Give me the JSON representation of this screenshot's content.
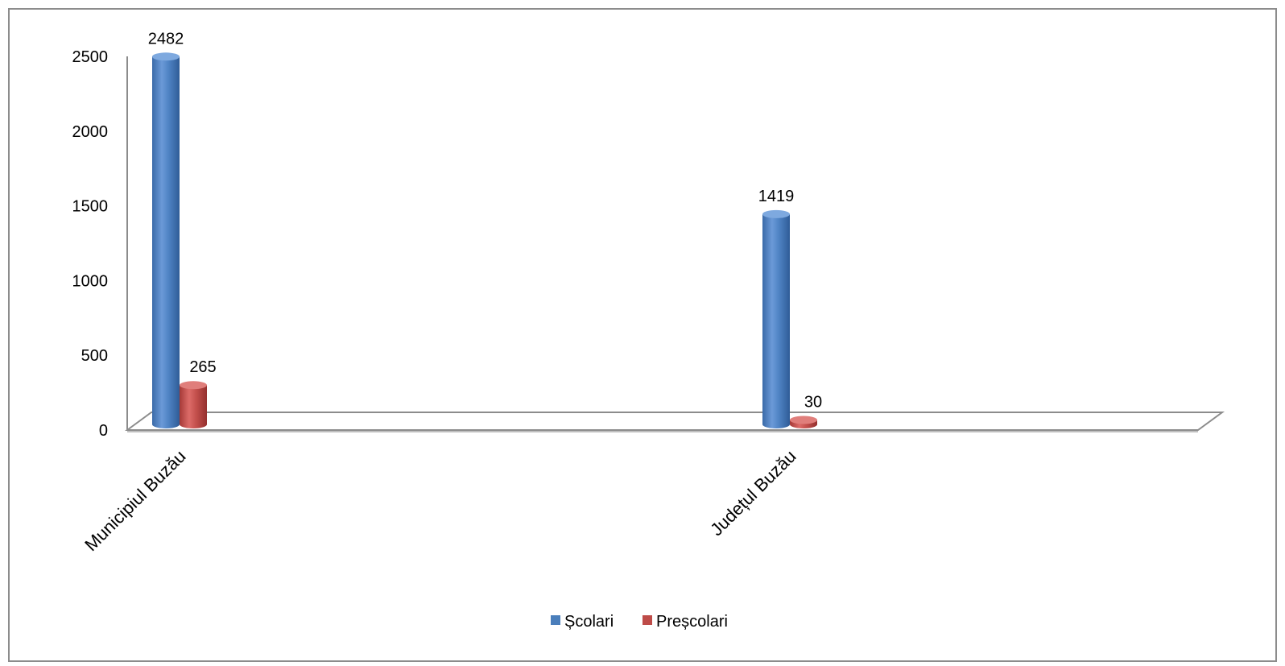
{
  "chart_data": {
    "type": "bar",
    "categories": [
      "Municipiul Buzău",
      "Județul Buzău"
    ],
    "series": [
      {
        "name": "Școlari",
        "values": [
          2482,
          1419
        ],
        "color": "#4a7ebb"
      },
      {
        "name": "Preșcolari",
        "values": [
          265,
          30
        ],
        "color": "#be4b48"
      }
    ],
    "yticks": [
      "0",
      "500",
      "1000",
      "1500",
      "2000",
      "2500"
    ],
    "ylim": [
      0,
      2500
    ],
    "legend_position": "bottom",
    "grid": false,
    "style": "3d-cylinder"
  }
}
